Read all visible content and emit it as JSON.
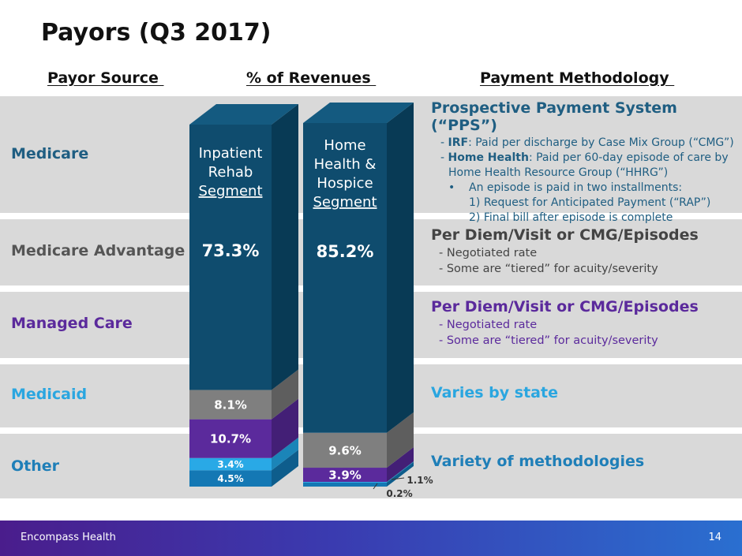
{
  "title": "Payors (Q3 2017)",
  "headers": {
    "source": "Payor Source ",
    "revenues": "% of Revenues ",
    "methodology": "Payment Methodology "
  },
  "rows": [
    {
      "label": "Medicare",
      "color": "#1f5e82"
    },
    {
      "label": "Medicare Advantage",
      "color": "#555555"
    },
    {
      "label": "Managed Care",
      "color": "#5b2a9c"
    },
    {
      "label": "Medicaid",
      "color": "#2aa6e0"
    },
    {
      "label": "Other",
      "color": "#1f7fb8"
    }
  ],
  "methods": {
    "medicare": {
      "title": "Prospective Payment System (“PPS”)",
      "line1_prefix": "- ",
      "line1_bold": "IRF",
      "line1_rest": ": Paid per discharge by Case Mix Group (“CMG”)",
      "line2_prefix": "- ",
      "line2_bold": "Home Health",
      "line2_rest": ": Paid per 60-day episode of care by",
      "line3": "Home Health Resource Group (“HHRG”)",
      "bullet_mark": "•",
      "bullet": "An episode is paid in two installments:",
      "sub1": "1) Request for Anticipated Payment (“RAP”)",
      "sub2": "2) Final bill after episode is complete"
    },
    "advantage": {
      "title": "Per Diem/Visit or CMG/Episodes",
      "line1": "- Negotiated rate",
      "line2": "- Some are “tiered” for acuity/severity"
    },
    "managed": {
      "title": "Per Diem/Visit or CMG/Episodes",
      "line1": "- Negotiated rate",
      "line2": "- Some are “tiered” for acuity/severity"
    },
    "medicaid": {
      "title": "Varies by state"
    },
    "other": {
      "title": "Variety of methodologies"
    }
  },
  "chart_data": {
    "type": "bar",
    "stacked": true,
    "categories": [
      "Inpatient Rehab Segment",
      "Home Health & Hospice Segment"
    ],
    "category_labels": [
      [
        "Inpatient",
        "Rehab",
        "Segment"
      ],
      [
        "Home",
        "Health &",
        "Hospice",
        "Segment"
      ]
    ],
    "series": [
      {
        "name": "Medicare",
        "values": [
          73.3,
          85.2
        ],
        "labels": [
          "73.3%",
          "85.2%"
        ],
        "color": "#0f4c6e",
        "side": "#083a55",
        "top": "#145a80"
      },
      {
        "name": "Medicare Advantage",
        "values": [
          8.1,
          9.6
        ],
        "labels": [
          "8.1%",
          "9.6%"
        ],
        "color": "#7f7f7f",
        "side": "#5e5e5e",
        "top": "#8c8c8c"
      },
      {
        "name": "Managed Care",
        "values": [
          10.7,
          3.9
        ],
        "labels": [
          "10.7%",
          "3.9%"
        ],
        "color": "#5b2a9c",
        "side": "#431f76",
        "top": "#6a35ad"
      },
      {
        "name": "Medicaid",
        "values": [
          3.4,
          0.2
        ],
        "labels": [
          "3.4%",
          "0.2%"
        ],
        "color": "#29a9e6",
        "side": "#1b85b8",
        "top": "#3cb6ee"
      },
      {
        "name": "Other",
        "values": [
          4.5,
          1.1
        ],
        "labels": [
          "4.5%",
          "1.1%"
        ],
        "color": "#1478b4",
        "side": "#0e5d8c",
        "top": "#1a86c6"
      }
    ],
    "ylim": [
      0,
      100
    ]
  },
  "footer": {
    "brand": "Encompass Health",
    "page": "14"
  }
}
